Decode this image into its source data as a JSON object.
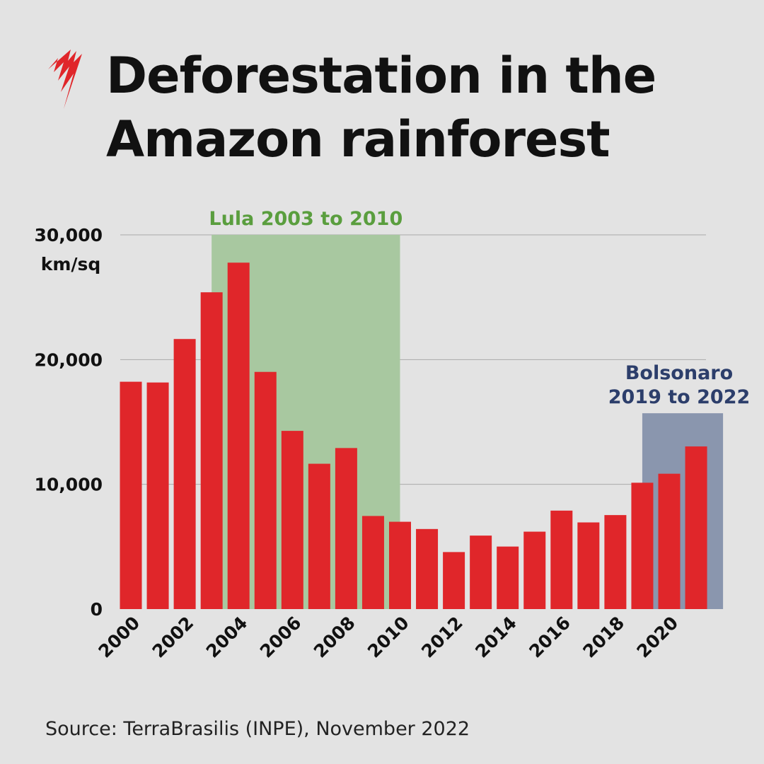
{
  "title_line1": "Deforestation in the",
  "title_line2": "Amazon rainforest",
  "source": "Source: TerraBrasilis (INPE), November 2022",
  "logo": "SBS",
  "chart_data": {
    "type": "bar",
    "title": "Deforestation in the Amazon rainforest",
    "ylabel": "km/sq",
    "ylim": [
      0,
      30000
    ],
    "yticks": [
      0,
      10000,
      20000,
      30000
    ],
    "ytick_labels": [
      "0",
      "10,000",
      "20,000",
      "30,000"
    ],
    "grid": true,
    "categories": [
      2000,
      2001,
      2002,
      2003,
      2004,
      2005,
      2006,
      2007,
      2008,
      2009,
      2010,
      2011,
      2012,
      2013,
      2014,
      2015,
      2016,
      2017,
      2018,
      2019,
      2020,
      2021
    ],
    "xtick_labels": [
      "2000",
      "2002",
      "2004",
      "2006",
      "2008",
      "2010",
      "2012",
      "2014",
      "2016",
      "2018",
      "2020"
    ],
    "values": [
      18226,
      18165,
      21651,
      25396,
      27772,
      19014,
      14286,
      11651,
      12911,
      7464,
      7000,
      6418,
      4571,
      5891,
      5012,
      6207,
      7893,
      6947,
      7536,
      10129,
      10851,
      13038
    ],
    "bar_color": "#e0262a",
    "annotations": [
      {
        "label": [
          "Lula 2003 to 2010"
        ],
        "from": 2003,
        "to": 2010,
        "top": 30000,
        "color": "#a8c8a0",
        "text_color": "#5a9e3e"
      },
      {
        "label": [
          "Bolsonaro",
          "2019 to 2022"
        ],
        "from": 2019,
        "to": 2022,
        "top": 15700,
        "color": "#8a96ae",
        "text_color": "#2c3e6b"
      }
    ]
  }
}
